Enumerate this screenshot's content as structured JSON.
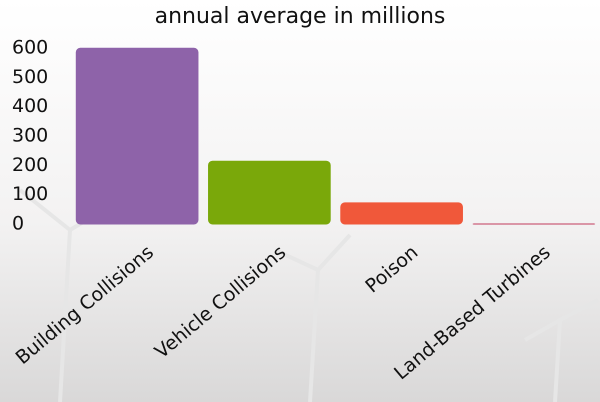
{
  "chart_data": {
    "type": "bar",
    "subtitle": "annual average in millions",
    "categories": [
      "Building Collisions",
      "Vehicle Collisions",
      "Poison",
      "Land-Based Turbines"
    ],
    "values": [
      599,
      214,
      72,
      0.2
    ],
    "colors": [
      "#8e63a9",
      "#7aa80a",
      "#f0583a",
      "#c23a5c"
    ],
    "ylim": [
      0,
      600
    ],
    "yticks": [
      0,
      100,
      200,
      300,
      400,
      500,
      600
    ],
    "grid": false
  }
}
